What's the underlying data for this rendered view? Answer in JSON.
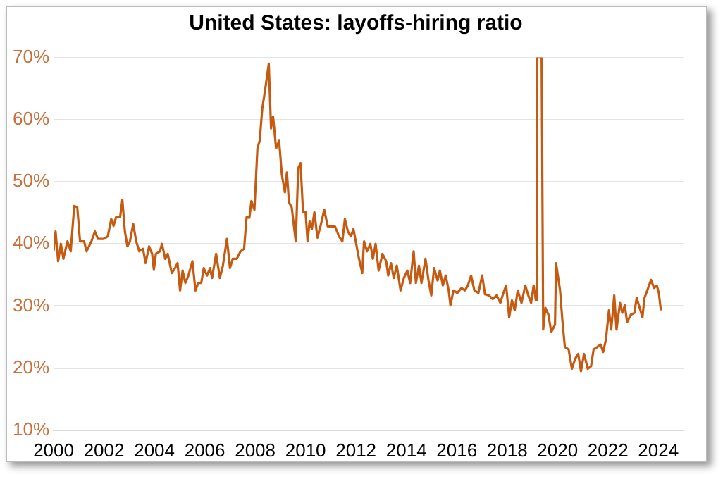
{
  "chart_data": {
    "type": "line",
    "title": "United States: layoffs-hiring ratio",
    "xlim": [
      2000,
      2025
    ],
    "xticks": [
      2000,
      2002,
      2004,
      2006,
      2008,
      2010,
      2012,
      2014,
      2016,
      2018,
      2020,
      2022,
      2024
    ],
    "ylim": [
      10,
      70
    ],
    "yticks": [
      {
        "value": 10,
        "label": "10%"
      },
      {
        "value": 20,
        "label": "20%"
      },
      {
        "value": 30,
        "label": "30%"
      },
      {
        "value": 40,
        "label": "40%"
      },
      {
        "value": 50,
        "label": "50%"
      },
      {
        "value": 60,
        "label": "60%"
      },
      {
        "value": 70,
        "label": "70%"
      }
    ],
    "grid": "y",
    "legend": false,
    "marker": "none",
    "line_style": "solid",
    "series": [
      {
        "color": "#c55a11",
        "x": [
          2000.0,
          2000.08,
          2000.18,
          2000.29,
          2000.39,
          2000.55,
          2000.68,
          2000.82,
          2000.94,
          2001.05,
          2001.21,
          2001.31,
          2001.5,
          2001.64,
          2001.76,
          2001.99,
          2002.15,
          2002.29,
          2002.38,
          2002.48,
          2002.64,
          2002.73,
          2002.83,
          2002.93,
          2003.03,
          2003.16,
          2003.28,
          2003.4,
          2003.55,
          2003.65,
          2003.79,
          2003.91,
          2003.98,
          2004.06,
          2004.22,
          2004.3,
          2004.43,
          2004.53,
          2004.69,
          2004.82,
          2004.92,
          2005.02,
          2005.12,
          2005.23,
          2005.35,
          2005.51,
          2005.63,
          2005.74,
          2005.86,
          2005.96,
          2006.09,
          2006.21,
          2006.29,
          2006.45,
          2006.6,
          2006.72,
          2006.88,
          2007.0,
          2007.11,
          2007.27,
          2007.42,
          2007.56,
          2007.66,
          2007.77,
          2007.85,
          2007.97,
          2008.09,
          2008.18,
          2008.28,
          2008.4,
          2008.54,
          2008.63,
          2008.71,
          2008.83,
          2008.95,
          2009.06,
          2009.18,
          2009.26,
          2009.34,
          2009.45,
          2009.61,
          2009.71,
          2009.8,
          2009.9,
          2010.0,
          2010.08,
          2010.16,
          2010.25,
          2010.35,
          2010.47,
          2010.59,
          2010.74,
          2010.88,
          2011.17,
          2011.33,
          2011.46,
          2011.56,
          2011.68,
          2011.8,
          2011.9,
          2012.1,
          2012.25,
          2012.32,
          2012.44,
          2012.57,
          2012.67,
          2012.78,
          2012.9,
          2013.05,
          2013.2,
          2013.28,
          2013.39,
          2013.5,
          2013.62,
          2013.77,
          2013.9,
          2014.04,
          2014.15,
          2014.29,
          2014.38,
          2014.5,
          2014.6,
          2014.76,
          2014.88,
          2014.99,
          2015.1,
          2015.24,
          2015.33,
          2015.45,
          2015.56,
          2015.68,
          2015.75,
          2015.87,
          2016.02,
          2016.19,
          2016.32,
          2016.44,
          2016.57,
          2016.7,
          2016.86,
          2017.01,
          2017.12,
          2017.28,
          2017.43,
          2017.58,
          2017.73,
          2017.85,
          2017.96,
          2018.08,
          2018.19,
          2018.3,
          2018.42,
          2018.57,
          2018.72,
          2018.84,
          2018.95,
          2019.05,
          2019.14,
          2019.18,
          2019.37,
          2019.43,
          2019.52,
          2019.64,
          2019.75,
          2019.9,
          2019.94,
          2020.1,
          2020.19,
          2020.29,
          2020.44,
          2020.57,
          2020.7,
          2020.82,
          2020.93,
          2021.05,
          2021.2,
          2021.33,
          2021.43,
          2021.58,
          2021.71,
          2021.81,
          2021.92,
          2022.04,
          2022.13,
          2022.25,
          2022.34,
          2022.48,
          2022.57,
          2022.67,
          2022.76,
          2022.91,
          2023.05,
          2023.14,
          2023.26,
          2023.37,
          2023.45,
          2023.56,
          2023.71,
          2023.83,
          2023.94,
          2024.02,
          2024.1
        ],
        "values": [
          38.8,
          42.0,
          37.2,
          40.0,
          37.6,
          40.4,
          38.8,
          46.1,
          45.9,
          40.4,
          40.4,
          38.8,
          40.4,
          42.0,
          40.8,
          40.8,
          41.2,
          44.0,
          42.9,
          44.3,
          44.3,
          47.1,
          42.0,
          39.6,
          40.4,
          43.2,
          40.4,
          38.8,
          39.2,
          36.9,
          39.6,
          38.4,
          35.8,
          38.4,
          38.8,
          40.0,
          37.6,
          38.4,
          35.3,
          36.1,
          36.9,
          32.5,
          35.7,
          33.7,
          34.9,
          37.2,
          32.5,
          33.7,
          33.7,
          36.1,
          34.9,
          36.1,
          34.5,
          38.4,
          34.5,
          36.5,
          40.8,
          36.1,
          37.6,
          37.6,
          38.8,
          39.2,
          44.3,
          44.2,
          46.9,
          45.5,
          55.4,
          56.6,
          61.7,
          64.9,
          69.0,
          58.6,
          60.5,
          55.4,
          56.6,
          51.1,
          48.3,
          51.5,
          46.7,
          45.9,
          40.4,
          52.2,
          53.0,
          45.1,
          45.1,
          40.4,
          43.6,
          42.4,
          45.1,
          41.0,
          42.8,
          45.5,
          42.8,
          42.8,
          41.2,
          40.4,
          44.0,
          42.0,
          41.2,
          42.4,
          38.0,
          35.3,
          40.4,
          38.8,
          40.0,
          37.6,
          40.0,
          35.7,
          38.4,
          37.2,
          34.9,
          36.9,
          34.5,
          36.5,
          32.5,
          34.5,
          35.7,
          33.7,
          38.8,
          33.7,
          36.5,
          33.7,
          37.6,
          34.1,
          31.7,
          36.1,
          34.1,
          35.7,
          33.3,
          34.9,
          32.5,
          30.1,
          32.5,
          32.1,
          32.9,
          32.5,
          33.3,
          34.9,
          32.5,
          32.1,
          34.9,
          31.9,
          31.7,
          31.1,
          31.7,
          30.5,
          32.1,
          33.3,
          28.2,
          30.9,
          29.3,
          32.5,
          30.5,
          33.3,
          31.7,
          30.5,
          33.3,
          30.9,
          70,
          70,
          26.2,
          29.7,
          28.6,
          25.8,
          27.0,
          36.9,
          32.5,
          27.8,
          23.4,
          23.0,
          19.9,
          21.5,
          22.3,
          19.5,
          22.3,
          19.9,
          20.3,
          23.0,
          23.4,
          23.8,
          22.6,
          24.6,
          29.3,
          26.2,
          31.7,
          26.2,
          30.5,
          28.9,
          30.1,
          27.4,
          28.6,
          28.9,
          31.3,
          29.7,
          28.2,
          31.3,
          32.5,
          34.2,
          32.9,
          33.3,
          32.1,
          29.3
        ]
      }
    ]
  }
}
